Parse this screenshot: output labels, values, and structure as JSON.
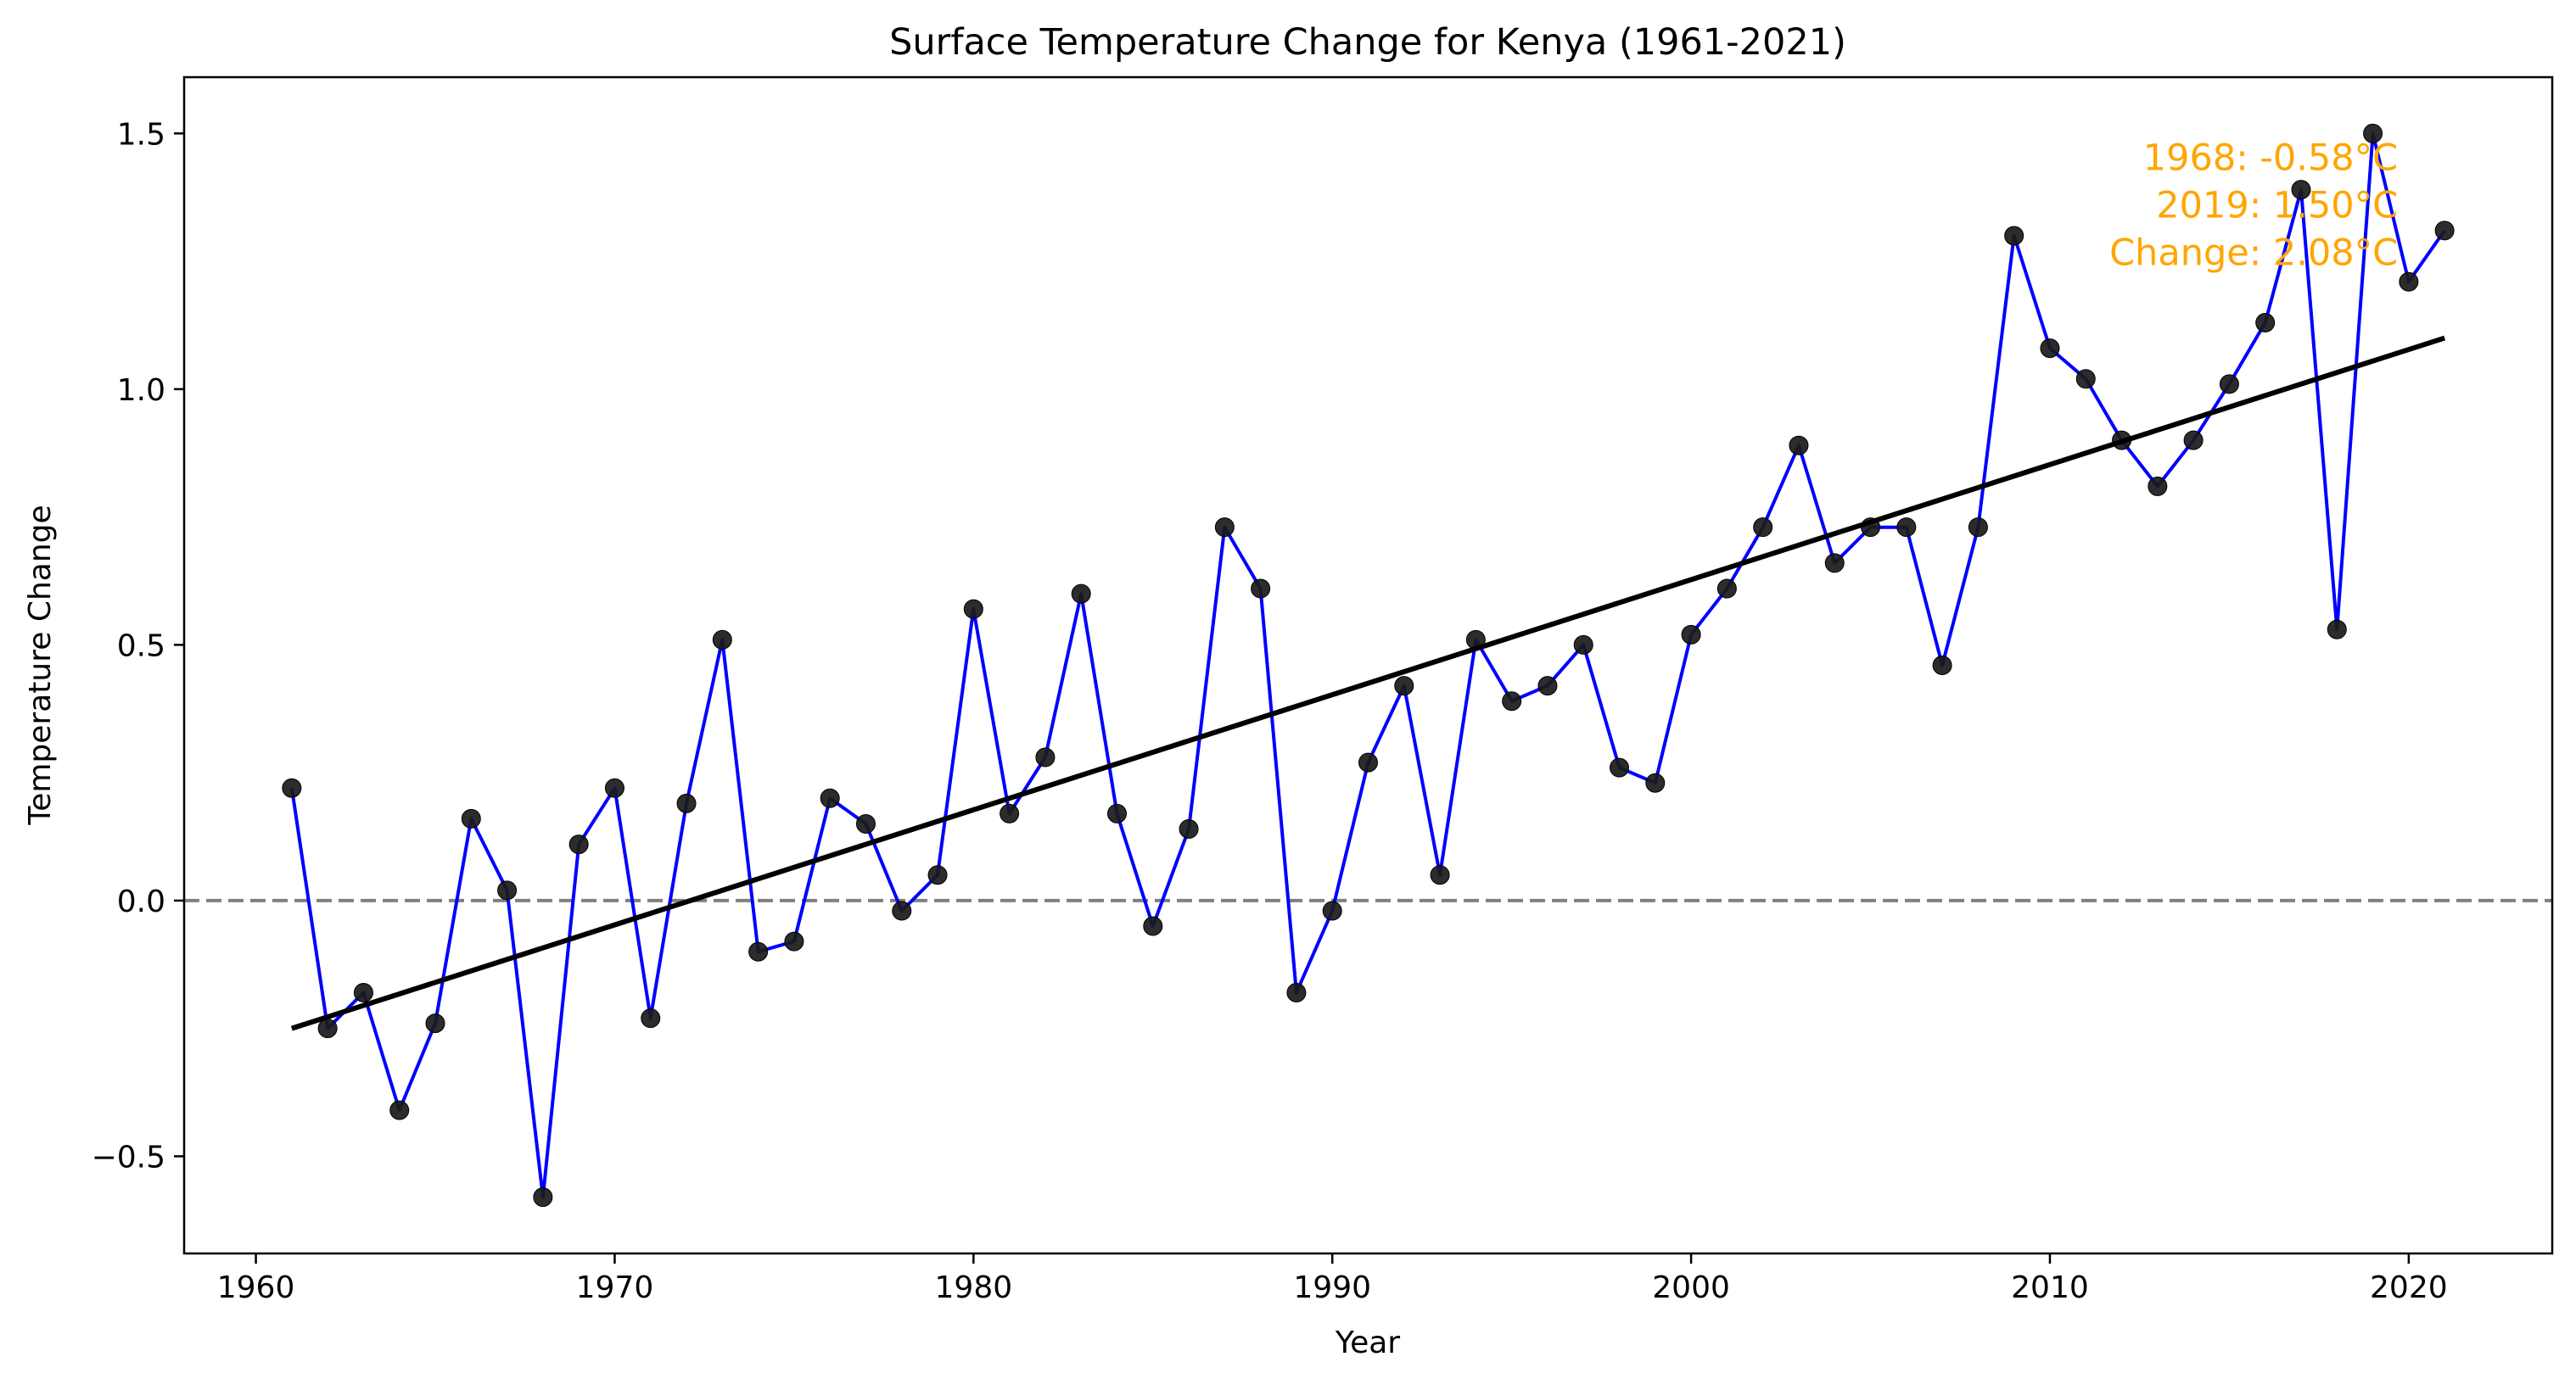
{
  "chart_data": {
    "type": "line",
    "title": "Surface Temperature Change for Kenya (1961-2021)",
    "xlabel": "Year",
    "ylabel": "Temperature Change",
    "xlim": [
      1958.0,
      2024.0
    ],
    "ylim": [
      -0.69,
      1.61
    ],
    "x_ticks": [
      1960,
      1970,
      1980,
      1990,
      2000,
      2010,
      2020
    ],
    "y_ticks": [
      -0.5,
      0.0,
      0.5,
      1.0,
      1.5
    ],
    "y_tick_labels": [
      "−0.5",
      "0.0",
      "0.5",
      "1.0",
      "1.5"
    ],
    "grid": false,
    "series": [
      {
        "line_color": "#0000ff",
        "marker_color": "#1a1a1a",
        "x": [
          1961,
          1962,
          1963,
          1964,
          1965,
          1966,
          1967,
          1968,
          1969,
          1970,
          1971,
          1972,
          1973,
          1974,
          1975,
          1976,
          1977,
          1978,
          1979,
          1980,
          1981,
          1982,
          1983,
          1984,
          1985,
          1986,
          1987,
          1988,
          1989,
          1990,
          1991,
          1992,
          1993,
          1994,
          1995,
          1996,
          1997,
          1998,
          1999,
          2000,
          2001,
          2002,
          2003,
          2004,
          2005,
          2006,
          2007,
          2008,
          2009,
          2010,
          2011,
          2012,
          2013,
          2014,
          2015,
          2016,
          2017,
          2018,
          2019,
          2020,
          2021
        ],
        "values": [
          0.22,
          -0.25,
          -0.18,
          -0.41,
          -0.24,
          0.16,
          0.02,
          -0.58,
          0.11,
          0.22,
          -0.23,
          0.19,
          0.51,
          -0.1,
          -0.08,
          0.2,
          0.15,
          -0.02,
          0.05,
          0.57,
          0.17,
          0.28,
          0.6,
          0.17,
          -0.05,
          0.14,
          0.73,
          0.61,
          -0.18,
          -0.02,
          0.27,
          0.42,
          0.05,
          0.51,
          0.39,
          0.42,
          0.5,
          0.26,
          0.23,
          0.52,
          0.61,
          0.73,
          0.89,
          0.66,
          0.73,
          0.73,
          0.46,
          0.73,
          1.3,
          1.08,
          1.02,
          0.9,
          0.81,
          0.9,
          1.01,
          1.13,
          1.39,
          0.53,
          1.5,
          1.21,
          1.31
        ]
      }
    ],
    "trend_line": {
      "color": "#000000",
      "x": [
        1961,
        2021
      ],
      "y": [
        -0.25,
        1.1
      ]
    },
    "reference_line": {
      "y": 0.0,
      "color": "#808080",
      "style": "dashed"
    },
    "annotation": {
      "lines": [
        "1968: -0.58°C",
        "2019: 1.50°C",
        "Change: 2.08°C"
      ],
      "color": "#FFA500",
      "anchor_x": 2019.7,
      "anchor_y": 1.5
    }
  }
}
